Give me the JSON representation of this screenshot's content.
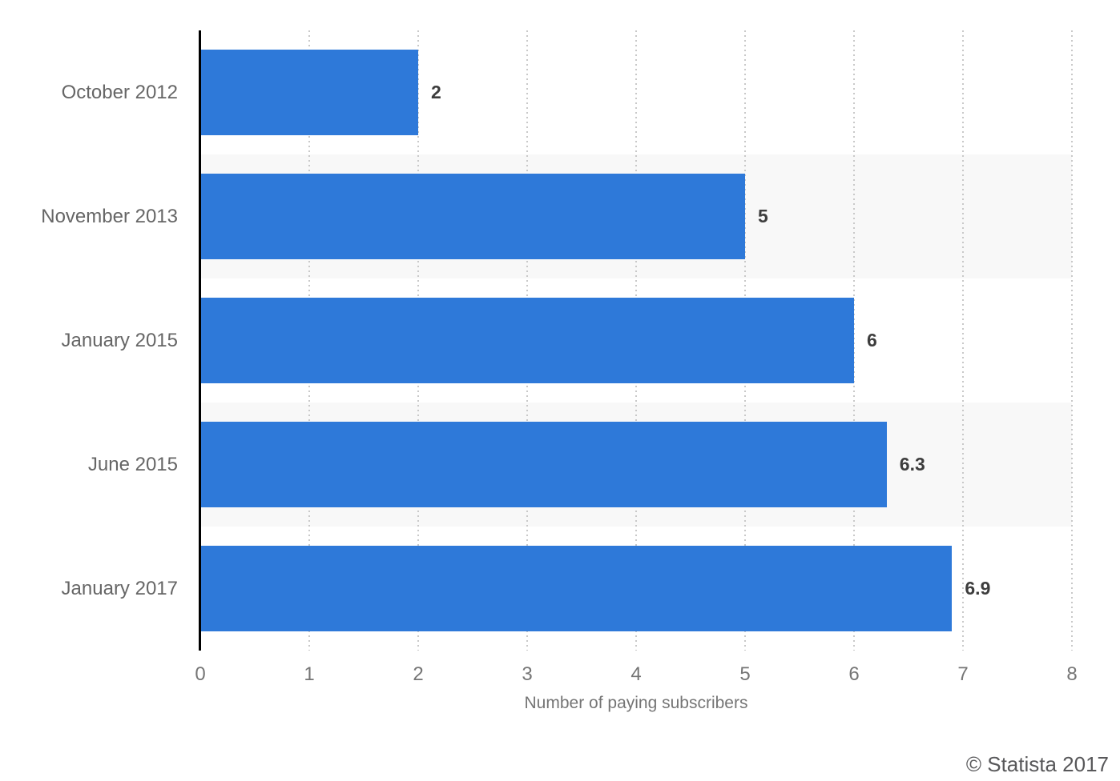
{
  "chart_data": {
    "type": "bar",
    "orientation": "horizontal",
    "categories": [
      "October 2012",
      "November 2013",
      "January 2015",
      "June 2015",
      "January 2017"
    ],
    "values": [
      2,
      5,
      6,
      6.3,
      6.9
    ],
    "value_labels": [
      "2",
      "5",
      "6",
      "6.3",
      "6.9"
    ],
    "title": "",
    "xlabel": "Number of paying subscribers",
    "ylabel": "",
    "xlim": [
      0,
      8
    ],
    "x_ticks": [
      0,
      1,
      2,
      3,
      4,
      5,
      6,
      7,
      8
    ],
    "grid": "vertical-dotted-gridlines",
    "legend": "none",
    "bar_color": "#2e79d9",
    "row_stripe_colors": [
      "#ffffff",
      "#f8f8f8",
      "#ffffff",
      "#f8f8f8",
      "#ffffff"
    ],
    "gridline_color": "#c9c9c9",
    "axis_line_color": "#000000",
    "category_label_color": "#666666",
    "tick_label_color": "#757575",
    "value_label_color": "#3d3d3d"
  },
  "footer": {
    "copyright": "© Statista 2017"
  }
}
